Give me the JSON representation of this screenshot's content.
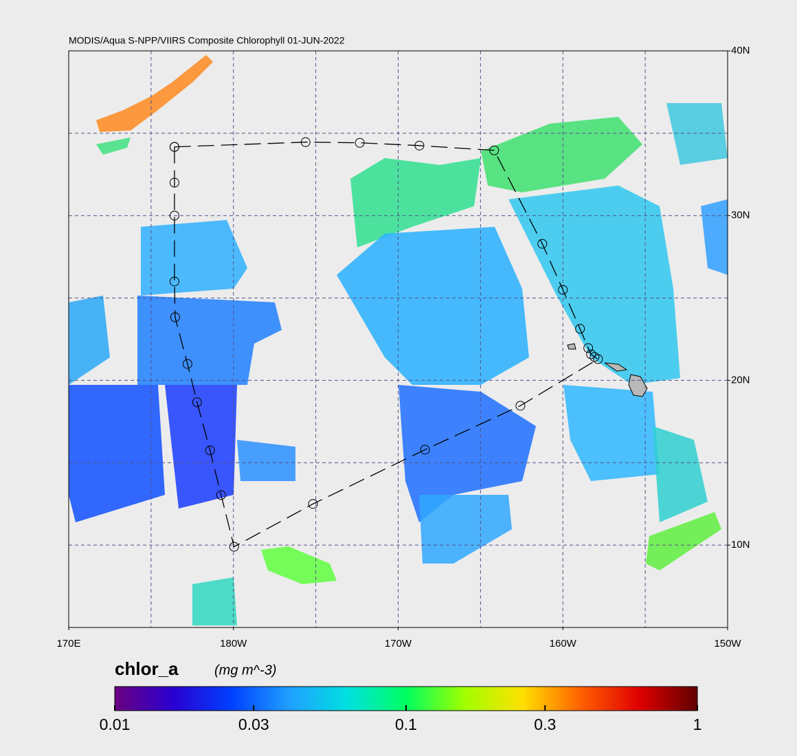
{
  "map": {
    "type": "map",
    "title": "MODIS/Aqua S-NPP/VIIRS Composite Chlorophyll 01-JUN-2022",
    "xlim": [
      170,
      210
    ],
    "ylim": [
      5,
      40
    ],
    "xticks": [
      {
        "value": 170,
        "label": "170E"
      },
      {
        "value": 180,
        "label": "180W"
      },
      {
        "value": 190,
        "label": "170W"
      },
      {
        "value": 200,
        "label": "160W"
      },
      {
        "value": 210,
        "label": "150W"
      }
    ],
    "yticks": [
      {
        "value": 40,
        "label": "40N"
      },
      {
        "value": 30,
        "label": "30N"
      },
      {
        "value": 20,
        "label": "20N"
      },
      {
        "value": 10,
        "label": "10N"
      }
    ],
    "grid_step": 5,
    "grid": true,
    "track": {
      "lon": [
        176.42,
        176.42,
        176.42,
        176.42,
        176.46,
        177.21,
        177.79,
        178.58,
        179.25,
        180.04,
        184.83,
        191.63,
        197.42,
        202.13,
        201.92,
        201.71,
        201.54,
        201.04,
        200.0,
        198.75,
        195.83,
        191.29,
        187.67,
        184.38,
        176.42
      ],
      "lat": [
        34.17,
        32.0,
        30.0,
        26.0,
        23.83,
        21.0,
        18.67,
        15.75,
        13.04,
        9.9,
        12.5,
        15.79,
        18.46,
        21.29,
        21.42,
        21.58,
        21.96,
        23.13,
        25.5,
        28.29,
        33.96,
        34.25,
        34.42,
        34.46,
        34.17
      ]
    },
    "colorbar": {
      "label": "chlor_a",
      "units": "(mg m^-3)",
      "log": true,
      "lim": [
        0.01,
        1
      ],
      "ticks": [
        0.01,
        0.03,
        0.1,
        0.3,
        1
      ],
      "colors": [
        "#6a0080",
        "#2a00d0",
        "#0040ff",
        "#20a0ff",
        "#00e0e0",
        "#00ff60",
        "#a0ff00",
        "#ffe000",
        "#ff6000",
        "#e00000",
        "#600000"
      ]
    }
  }
}
